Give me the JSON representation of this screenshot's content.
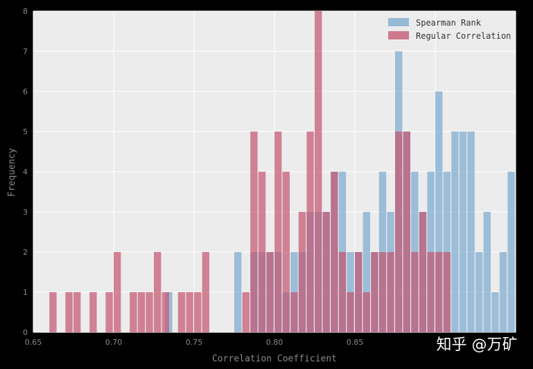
{
  "chart_data": {
    "type": "histogram",
    "title": "",
    "xlabel": "Correlation Coefficient",
    "ylabel": "Frequency",
    "xlim": [
      0.65,
      0.95
    ],
    "ylim": [
      0,
      8
    ],
    "bin_width": 0.005,
    "x_ticks": [
      0.65,
      0.7,
      0.75,
      0.8,
      0.85,
      0.9,
      0.95
    ],
    "x_tick_labels": [
      "0.65",
      "0.70",
      "0.75",
      "0.80",
      "0.85",
      "",
      ""
    ],
    "y_ticks": [
      0,
      1,
      2,
      3,
      4,
      5,
      6,
      7,
      8
    ],
    "y_tick_labels": [
      "0",
      "1",
      "2",
      "3",
      "4",
      "5",
      "6",
      "7",
      "8"
    ],
    "grid": true,
    "legend_position": "top-right",
    "colors": {
      "background": "#ececec",
      "spearman": "#7aa9cf",
      "regular": "#c4546f",
      "grid": "#ffffff"
    },
    "series": [
      {
        "name": "Spearman Rank",
        "color": "#7aa9cf",
        "bins": [
          [
            0.732,
            1
          ],
          [
            0.775,
            2
          ],
          [
            0.785,
            2
          ],
          [
            0.79,
            2
          ],
          [
            0.795,
            2
          ],
          [
            0.8,
            2
          ],
          [
            0.805,
            1
          ],
          [
            0.81,
            2
          ],
          [
            0.815,
            2
          ],
          [
            0.82,
            3
          ],
          [
            0.825,
            3
          ],
          [
            0.83,
            3
          ],
          [
            0.835,
            4
          ],
          [
            0.84,
            4
          ],
          [
            0.845,
            2
          ],
          [
            0.85,
            2
          ],
          [
            0.855,
            3
          ],
          [
            0.86,
            2
          ],
          [
            0.865,
            4
          ],
          [
            0.87,
            3
          ],
          [
            0.875,
            7
          ],
          [
            0.88,
            5
          ],
          [
            0.885,
            4
          ],
          [
            0.89,
            3
          ],
          [
            0.895,
            4
          ],
          [
            0.9,
            6
          ],
          [
            0.905,
            4
          ],
          [
            0.91,
            5
          ],
          [
            0.915,
            5
          ],
          [
            0.92,
            5
          ],
          [
            0.925,
            2
          ],
          [
            0.93,
            3
          ],
          [
            0.935,
            1
          ],
          [
            0.94,
            2
          ],
          [
            0.945,
            4
          ]
        ]
      },
      {
        "name": "Regular Correlation",
        "color": "#c4546f",
        "bins": [
          [
            0.66,
            1
          ],
          [
            0.67,
            1
          ],
          [
            0.675,
            1
          ],
          [
            0.685,
            1
          ],
          [
            0.695,
            1
          ],
          [
            0.7,
            2
          ],
          [
            0.71,
            1
          ],
          [
            0.715,
            1
          ],
          [
            0.72,
            1
          ],
          [
            0.725,
            2
          ],
          [
            0.73,
            1
          ],
          [
            0.74,
            1
          ],
          [
            0.745,
            1
          ],
          [
            0.75,
            1
          ],
          [
            0.755,
            2
          ],
          [
            0.78,
            1
          ],
          [
            0.785,
            5
          ],
          [
            0.79,
            4
          ],
          [
            0.795,
            2
          ],
          [
            0.8,
            5
          ],
          [
            0.805,
            4
          ],
          [
            0.81,
            1
          ],
          [
            0.815,
            3
          ],
          [
            0.82,
            5
          ],
          [
            0.825,
            8
          ],
          [
            0.83,
            3
          ],
          [
            0.835,
            4
          ],
          [
            0.84,
            2
          ],
          [
            0.845,
            1
          ],
          [
            0.85,
            2
          ],
          [
            0.855,
            1
          ],
          [
            0.86,
            2
          ],
          [
            0.865,
            2
          ],
          [
            0.87,
            2
          ],
          [
            0.875,
            5
          ],
          [
            0.88,
            5
          ],
          [
            0.885,
            2
          ],
          [
            0.89,
            3
          ],
          [
            0.895,
            2
          ],
          [
            0.9,
            2
          ],
          [
            0.905,
            2
          ]
        ]
      }
    ]
  },
  "watermark": "知乎 @万矿"
}
